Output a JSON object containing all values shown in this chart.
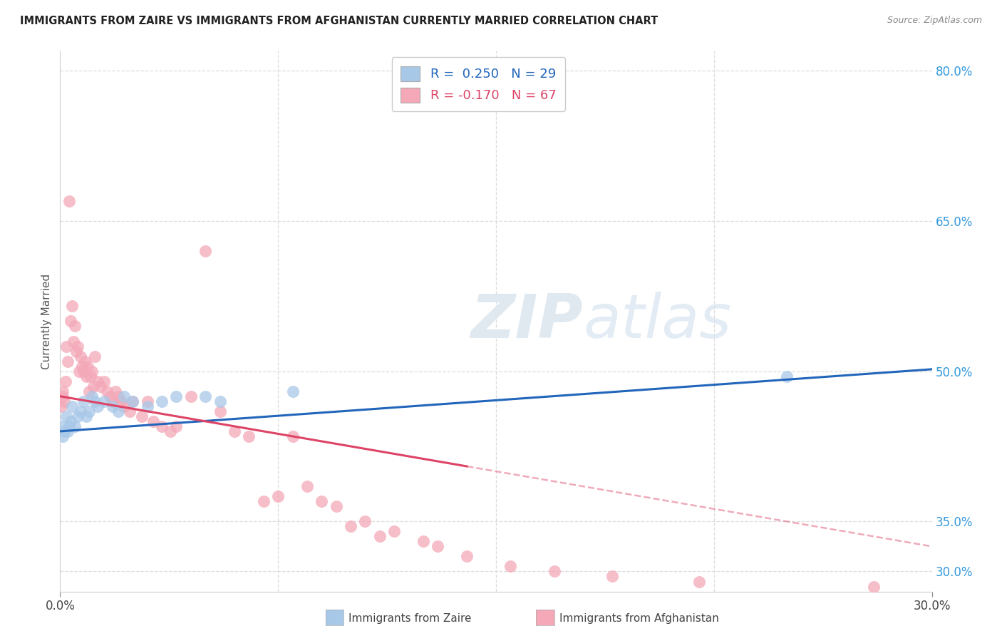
{
  "title": "IMMIGRANTS FROM ZAIRE VS IMMIGRANTS FROM AFGHANISTAN CURRENTLY MARRIED CORRELATION CHART",
  "source": "Source: ZipAtlas.com",
  "xlabel_vals": [
    0.0,
    30.0
  ],
  "ylabel": "Currently Married",
  "ylabel_right_ticks": [
    30.0,
    35.0,
    50.0,
    65.0,
    80.0
  ],
  "xlim": [
    0.0,
    30.0
  ],
  "ylim": [
    28.0,
    82.0
  ],
  "legend_label1": "Immigrants from Zaire",
  "legend_label2": "Immigrants from Afghanistan",
  "zaire_color": "#a8c8e8",
  "afghanistan_color": "#f4a8b8",
  "zaire_line_color": "#2266bb",
  "afghanistan_line_color": "#dd4466",
  "background_color": "#ffffff",
  "watermark_zip": "ZIP",
  "watermark_atlas": "atlas",
  "grid_color": "#dddddd",
  "zaire_R": 0.25,
  "zaire_N": 29,
  "afghanistan_R": -0.17,
  "afghanistan_N": 67,
  "zaire_x": [
    0.05,
    0.1,
    0.15,
    0.2,
    0.25,
    0.3,
    0.35,
    0.4,
    0.5,
    0.6,
    0.7,
    0.8,
    0.9,
    1.0,
    1.1,
    1.2,
    1.3,
    1.5,
    1.8,
    2.0,
    2.2,
    2.5,
    3.0,
    3.5,
    4.0,
    5.0,
    5.5,
    8.0,
    25.0
  ],
  "zaire_y": [
    44.5,
    43.5,
    44.0,
    45.5,
    44.0,
    44.5,
    45.0,
    46.5,
    44.5,
    45.5,
    46.0,
    47.0,
    45.5,
    46.0,
    47.5,
    47.0,
    46.5,
    47.0,
    46.5,
    46.0,
    47.5,
    47.0,
    46.5,
    47.0,
    47.5,
    47.5,
    47.0,
    48.0,
    49.5
  ],
  "afghanistan_x": [
    0.05,
    0.08,
    0.1,
    0.15,
    0.18,
    0.2,
    0.25,
    0.3,
    0.35,
    0.4,
    0.45,
    0.5,
    0.55,
    0.6,
    0.65,
    0.7,
    0.75,
    0.8,
    0.85,
    0.9,
    0.95,
    1.0,
    1.05,
    1.1,
    1.15,
    1.2,
    1.3,
    1.4,
    1.5,
    1.6,
    1.7,
    1.8,
    1.9,
    2.0,
    2.1,
    2.2,
    2.4,
    2.5,
    2.8,
    3.0,
    3.2,
    3.5,
    3.8,
    4.0,
    4.5,
    5.0,
    5.5,
    6.0,
    6.5,
    7.0,
    7.5,
    8.0,
    8.5,
    9.0,
    9.5,
    10.0,
    10.5,
    11.0,
    11.5,
    12.5,
    13.0,
    14.0,
    15.5,
    17.0,
    19.0,
    22.0,
    28.0
  ],
  "afghanistan_y": [
    46.5,
    47.5,
    48.0,
    47.0,
    49.0,
    52.5,
    51.0,
    67.0,
    55.0,
    56.5,
    53.0,
    54.5,
    52.0,
    52.5,
    50.0,
    51.5,
    50.5,
    50.0,
    51.0,
    49.5,
    50.5,
    48.0,
    49.5,
    50.0,
    48.5,
    51.5,
    49.0,
    48.5,
    49.0,
    48.0,
    47.5,
    47.0,
    48.0,
    47.5,
    47.0,
    46.5,
    46.0,
    47.0,
    45.5,
    47.0,
    45.0,
    44.5,
    44.0,
    44.5,
    47.5,
    62.0,
    46.0,
    44.0,
    43.5,
    37.0,
    37.5,
    43.5,
    38.5,
    37.0,
    36.5,
    34.5,
    35.0,
    33.5,
    34.0,
    33.0,
    32.5,
    31.5,
    30.5,
    30.0,
    29.5,
    29.0,
    28.5
  ],
  "afg_solid_max_x": 14.0,
  "zaire_line_x0": 0.0,
  "zaire_line_y0": 44.0,
  "zaire_line_x1": 30.0,
  "zaire_line_y1": 50.2,
  "afg_line_x0": 0.0,
  "afg_line_y0": 47.5,
  "afg_line_x1": 30.0,
  "afg_line_y1": 32.5
}
